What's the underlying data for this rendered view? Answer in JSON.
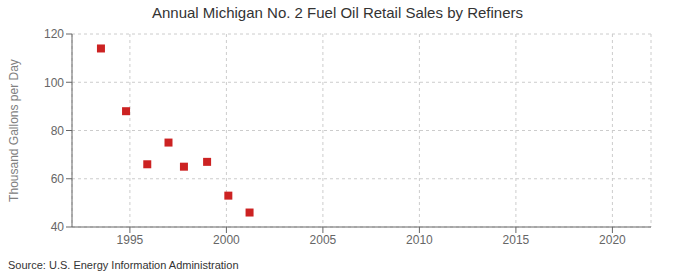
{
  "chart_data": {
    "type": "scatter",
    "title": "Annual Michigan No. 2 Fuel Oil Retail Sales by Refiners",
    "ylabel": "Thousand Gallons per Day",
    "source": "Source: U.S. Energy Information Administration",
    "x": [
      1993.5,
      1994.8,
      1995.9,
      1997.0,
      1997.8,
      1999.0,
      2000.1,
      2001.2
    ],
    "values": [
      114.0,
      88.0,
      66.0,
      75.0,
      65.0,
      67.0,
      53.0,
      46.0
    ],
    "color": "#cc2222",
    "marker": "square",
    "xlim": [
      1992,
      2022
    ],
    "ylim": [
      40,
      120
    ],
    "xticks": [
      1995,
      2000,
      2005,
      2010,
      2015,
      2020
    ],
    "yticks": [
      40,
      60,
      80,
      100,
      120
    ],
    "grid": true
  }
}
